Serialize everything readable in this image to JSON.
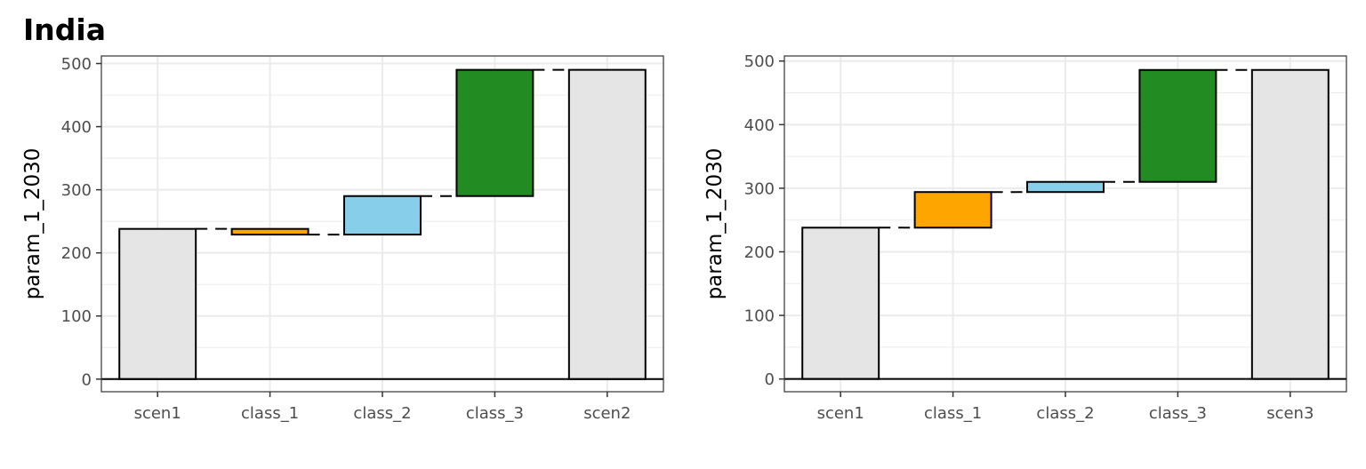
{
  "title": "India",
  "colors": {
    "total": "#e5e5e5",
    "class_1": "#ffa500",
    "class_2": "#87ceeb",
    "class_3": "#228b22",
    "outline": "#000000",
    "grid": "#ebebeb"
  },
  "chart_data": [
    {
      "type": "bar",
      "subtype": "waterfall",
      "ylabel": "param_1_2030",
      "ylim": [
        -20,
        512
      ],
      "yticks": [
        0,
        100,
        200,
        300,
        400,
        500
      ],
      "grid": true,
      "categories": [
        "scen1",
        "class_1",
        "class_2",
        "class_3",
        "scen2"
      ],
      "bars": [
        {
          "category": "scen1",
          "kind": "total",
          "start": 0,
          "end": 238
        },
        {
          "category": "class_1",
          "kind": "class_1",
          "start": 238,
          "end": 229
        },
        {
          "category": "class_2",
          "kind": "class_2",
          "start": 229,
          "end": 290
        },
        {
          "category": "class_3",
          "kind": "class_3",
          "start": 290,
          "end": 490
        },
        {
          "category": "scen2",
          "kind": "total",
          "start": 0,
          "end": 490
        }
      ]
    },
    {
      "type": "bar",
      "subtype": "waterfall",
      "ylabel": "param_1_2030",
      "ylim": [
        -20,
        508
      ],
      "yticks": [
        0,
        100,
        200,
        300,
        400,
        500
      ],
      "grid": true,
      "categories": [
        "scen1",
        "class_1",
        "class_2",
        "class_3",
        "scen3"
      ],
      "bars": [
        {
          "category": "scen1",
          "kind": "total",
          "start": 0,
          "end": 238
        },
        {
          "category": "class_1",
          "kind": "class_1",
          "start": 238,
          "end": 294
        },
        {
          "category": "class_2",
          "kind": "class_2",
          "start": 294,
          "end": 310
        },
        {
          "category": "class_3",
          "kind": "class_3",
          "start": 310,
          "end": 486
        },
        {
          "category": "scen3",
          "kind": "total",
          "start": 0,
          "end": 486
        }
      ]
    }
  ]
}
